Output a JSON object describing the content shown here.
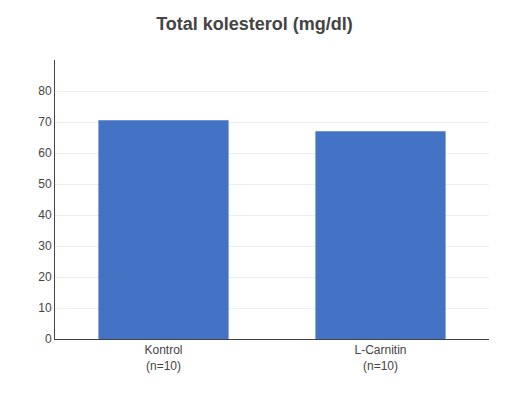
{
  "chart_data": {
    "type": "bar",
    "title": "Total kolesterol (mg/dl)",
    "categories": [
      "Kontrol\n(n=10)",
      "L-Carnitin\n(n=10)"
    ],
    "values": [
      70.6,
      67.0
    ],
    "color": "#4472C4",
    "ylim": [
      0,
      90
    ],
    "yticks": [
      0,
      10,
      20,
      30,
      40,
      50,
      60,
      70,
      80
    ],
    "grid": true
  }
}
